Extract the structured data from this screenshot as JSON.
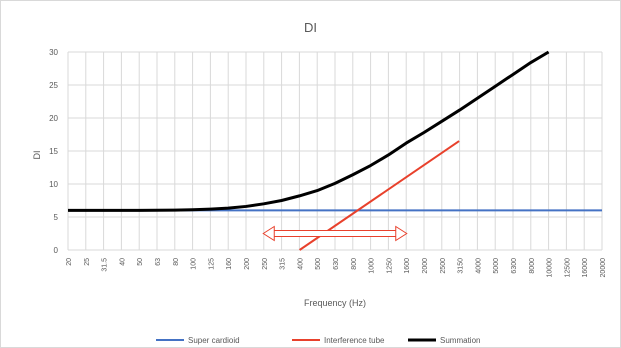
{
  "chart_data": {
    "type": "line",
    "title": "DI",
    "xlabel": "Frequency (Hz)",
    "ylabel": "DI",
    "ylim": [
      0,
      30
    ],
    "yticks": [
      0,
      5,
      10,
      15,
      20,
      25,
      30
    ],
    "x_scale": "log-categorical",
    "x": [
      20,
      25,
      31.5,
      40,
      50,
      63,
      80,
      100,
      125,
      160,
      200,
      250,
      315,
      400,
      500,
      630,
      800,
      1000,
      1250,
      1600,
      2000,
      2500,
      3150,
      4000,
      5000,
      6300,
      8000,
      10000,
      12500,
      16000,
      20000
    ],
    "x_tick_labels": [
      "20",
      "25",
      "31.5",
      "40",
      "50",
      "63",
      "80",
      "100",
      "125",
      "160",
      "200",
      "250",
      "315",
      "400",
      "500",
      "630",
      "800",
      "1000",
      "1250",
      "1600",
      "2000",
      "2500",
      "3150",
      "4000",
      "5000",
      "6300",
      "8000",
      "10000",
      "12500",
      "16000",
      "20000"
    ],
    "grid": true,
    "legend_position": "bottom",
    "series": [
      {
        "name": "Super cardioid",
        "color": "#4472c4",
        "values": [
          6,
          6,
          6,
          6,
          6,
          6,
          6,
          6,
          6,
          6,
          6,
          6,
          6,
          6,
          6,
          6,
          6,
          6,
          6,
          6,
          6,
          6,
          6,
          6,
          6,
          6,
          6,
          6,
          6,
          6,
          6
        ]
      },
      {
        "name": "Interference tube",
        "color": "#e8412c",
        "x_start": 400,
        "x_end": 3150,
        "values_at_range": [
          0,
          16.5
        ]
      },
      {
        "name": "Summation",
        "color": "#000000",
        "values": [
          6,
          6,
          6,
          6,
          6,
          6.02,
          6.05,
          6.1,
          6.2,
          6.35,
          6.6,
          7.0,
          7.5,
          8.2,
          9.0,
          10.1,
          11.4,
          12.8,
          14.4,
          16.2,
          17.8,
          19.5,
          21.2,
          23.0,
          24.8,
          26.6,
          28.4,
          30.2,
          null,
          null,
          null
        ]
      }
    ],
    "annotations": [
      {
        "type": "double-arrow",
        "color": "#e8412c",
        "x_from": 250,
        "x_to": 1600,
        "y": 2.5
      }
    ]
  }
}
